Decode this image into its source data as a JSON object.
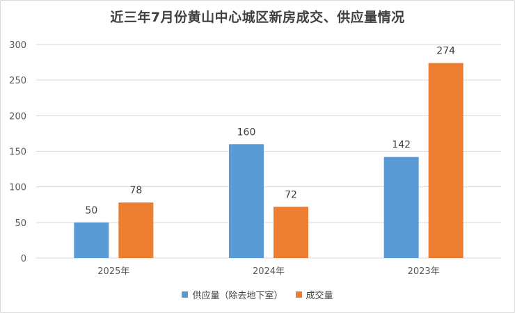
{
  "chart_data": {
    "type": "bar",
    "title": "近三年7月份黄山中心城区新房成交、供应量情况",
    "categories": [
      "2025年",
      "2024年",
      "2023年"
    ],
    "series": [
      {
        "name": "供应量（除去地下室）",
        "values": [
          50,
          160,
          142
        ],
        "color": "#5b9bd5"
      },
      {
        "name": "成交量",
        "values": [
          78,
          72,
          274
        ],
        "color": "#ed7d31"
      }
    ],
    "ylim": [
      0,
      300
    ],
    "yticks": [
      0,
      50,
      100,
      150,
      200,
      250,
      300
    ],
    "grid": true,
    "legend_position": "bottom",
    "xlabel": "",
    "ylabel": ""
  }
}
